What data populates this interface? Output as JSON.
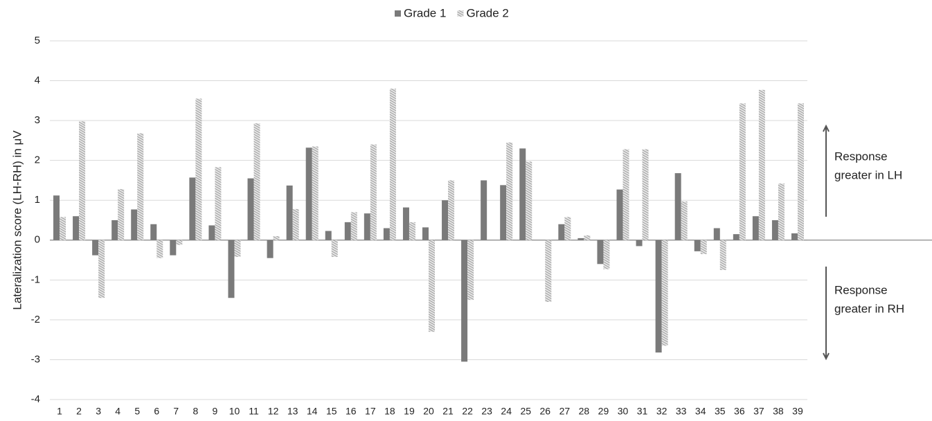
{
  "chart_data": {
    "type": "bar",
    "y_label": "Lateralization score (LH-RH) in μV",
    "categories": [
      "1",
      "2",
      "3",
      "4",
      "5",
      "6",
      "7",
      "8",
      "9",
      "10",
      "11",
      "12",
      "13",
      "14",
      "15",
      "16",
      "17",
      "18",
      "19",
      "20",
      "21",
      "22",
      "23",
      "24",
      "25",
      "26",
      "27",
      "28",
      "29",
      "30",
      "31",
      "32",
      "33",
      "34",
      "35",
      "36",
      "37",
      "38",
      "39"
    ],
    "series": [
      {
        "name": "Grade 1",
        "color": "#7a7a7a",
        "hatch": false,
        "values": [
          1.12,
          0.6,
          -0.38,
          0.5,
          0.77,
          0.4,
          -0.38,
          1.57,
          0.37,
          -1.45,
          1.55,
          -0.45,
          1.37,
          2.32,
          0.23,
          0.45,
          0.67,
          0.3,
          0.82,
          0.32,
          1.0,
          -3.05,
          1.5,
          1.38,
          2.3,
          0,
          0.4,
          0.05,
          -0.6,
          1.27,
          -0.15,
          -2.82,
          1.68,
          -0.28,
          0.3,
          0.15,
          0.6,
          0.5,
          0.17
        ]
      },
      {
        "name": "Grade 2",
        "color": "#9a9a9a",
        "hatch": true,
        "values": [
          0.58,
          2.98,
          -1.45,
          1.28,
          2.68,
          -0.45,
          -0.12,
          3.55,
          1.83,
          -0.42,
          2.93,
          0.1,
          0.78,
          2.35,
          -0.42,
          0.7,
          2.4,
          3.8,
          0.45,
          -2.3,
          1.5,
          -1.5,
          0,
          2.45,
          1.97,
          -1.55,
          0.58,
          0.12,
          -0.73,
          2.28,
          2.28,
          -2.65,
          0.97,
          -0.35,
          -0.75,
          3.43,
          3.77,
          1.42,
          3.43
        ]
      }
    ],
    "ylim": [
      -4,
      5
    ],
    "yticks": [
      -4,
      -3,
      -2,
      -1,
      0,
      1,
      2,
      3,
      4,
      5
    ],
    "grid": true,
    "legend": "top",
    "annotations": [
      {
        "lines": [
          "Response",
          "greater in LH"
        ],
        "arrow": "up"
      },
      {
        "lines": [
          "Response",
          "greater in RH"
        ],
        "arrow": "down"
      }
    ]
  }
}
